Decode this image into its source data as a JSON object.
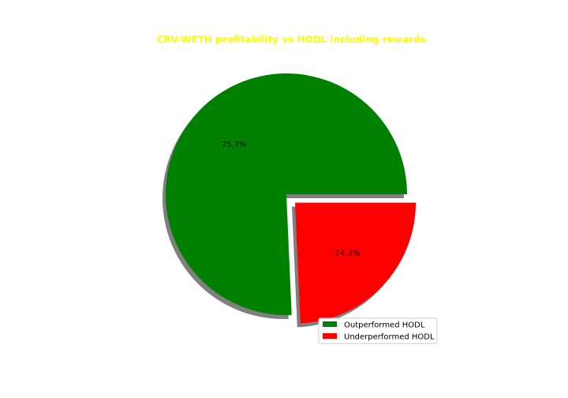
{
  "chart_data": {
    "type": "pie",
    "title": "CRV-WETH profitability vs HODL including rewards",
    "title_color": "#ffff00",
    "slices": [
      {
        "label": "Outperformed HODL",
        "value": 75.7,
        "pct_text": "75.7%",
        "color": "#008000",
        "explode": 0.0
      },
      {
        "label": "Underperformed HODL",
        "value": 24.3,
        "pct_text": "24.3%",
        "color": "#ff0000",
        "explode": 0.1
      }
    ],
    "shadow": true,
    "start_angle": 0,
    "legend_placement": "lower-right"
  }
}
